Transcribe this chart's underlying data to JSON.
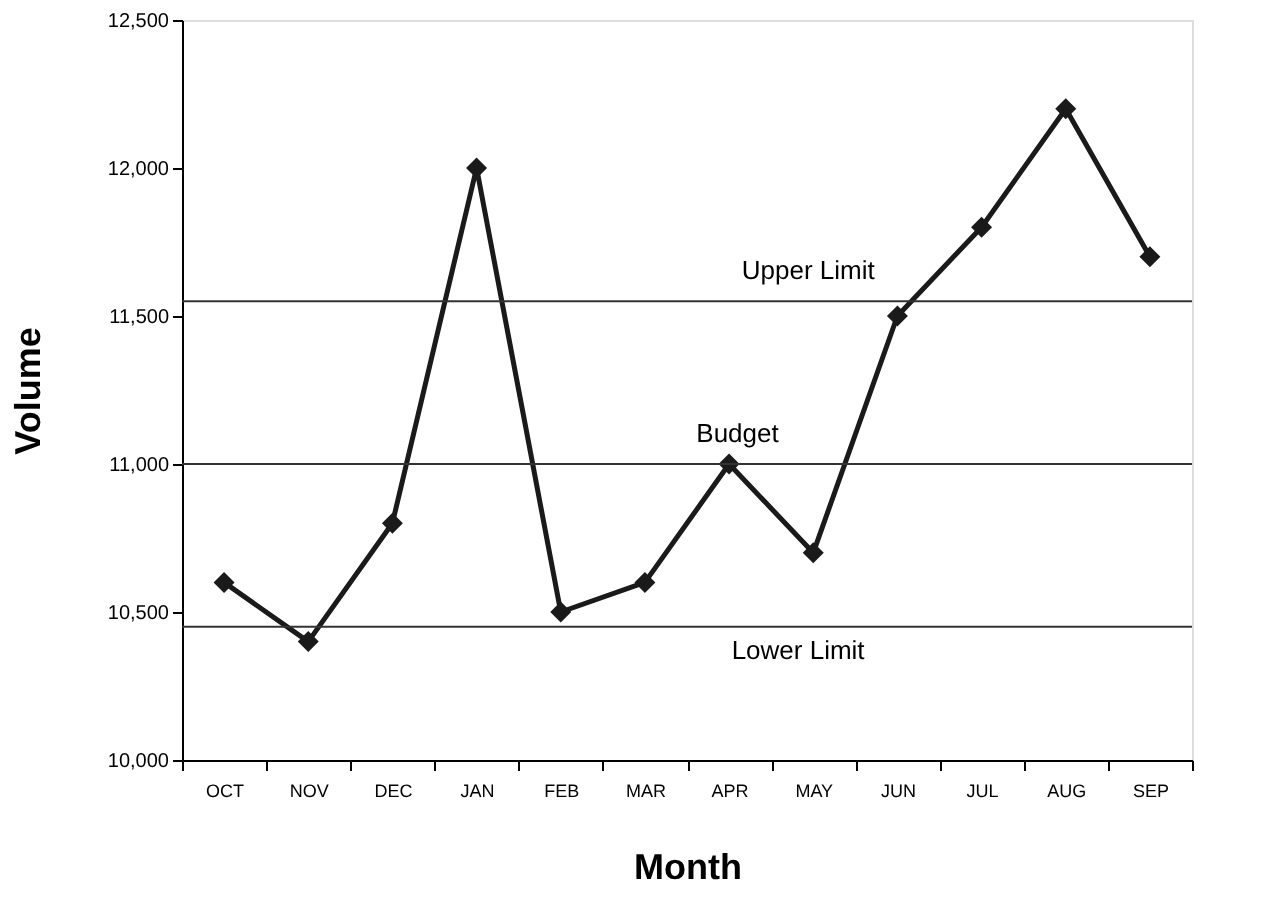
{
  "chart_data": {
    "type": "line",
    "xlabel": "Month",
    "ylabel": "Volume",
    "categories": [
      "OCT",
      "NOV",
      "DEC",
      "JAN",
      "FEB",
      "MAR",
      "APR",
      "MAY",
      "JUN",
      "JUL",
      "AUG",
      "SEP"
    ],
    "series": [
      {
        "color": "#1a1a1a",
        "values": [
          10600,
          10400,
          10800,
          12000,
          10500,
          10600,
          11000,
          10700,
          11500,
          11800,
          12200,
          11700
        ]
      }
    ],
    "ylim": [
      10000,
      12500
    ],
    "yticks": [
      {
        "value": 10000,
        "label": "10,000"
      },
      {
        "value": 10500,
        "label": "10,500"
      },
      {
        "value": 11000,
        "label": "11,000"
      },
      {
        "value": 11500,
        "label": "11,500"
      },
      {
        "value": 12000,
        "label": "12,000"
      },
      {
        "value": 12500,
        "label": "12,500"
      }
    ],
    "ref_lines": [
      {
        "axis": "y",
        "value": 11550,
        "label": "Upper Limit",
        "color": "#333333"
      },
      {
        "axis": "y",
        "value": 11000,
        "label": "Budget",
        "color": "#333333"
      },
      {
        "axis": "y",
        "value": 10450,
        "label": "Lower Limit",
        "color": "#333333"
      }
    ],
    "marker": "diamond",
    "line_style": "solid"
  }
}
